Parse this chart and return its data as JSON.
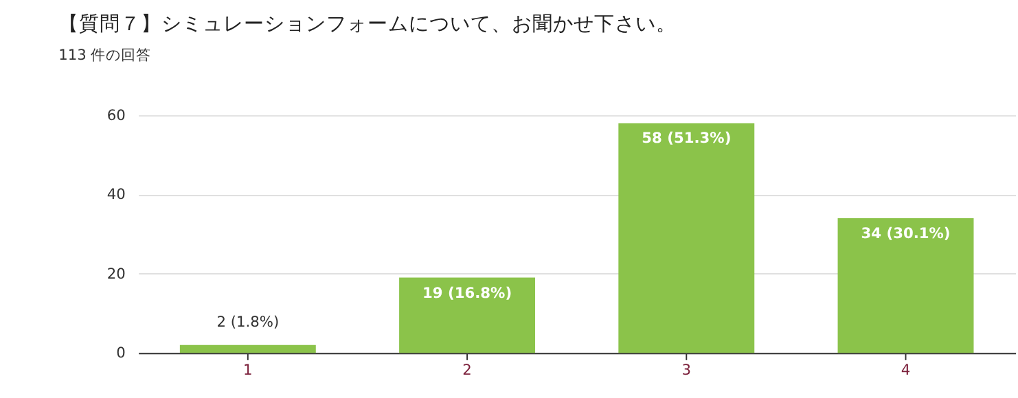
{
  "chart_data": {
    "type": "bar",
    "title": "【質問７】シミュレーションフォームについて、お聞かせ下さい。",
    "subtitle": "113 件の回答",
    "categories": [
      "1",
      "2",
      "3",
      "4"
    ],
    "values": [
      2,
      19,
      58,
      34
    ],
    "value_labels": [
      "2 (1.8%)",
      "19 (16.8%)",
      "58 (51.3%)",
      "34 (30.1%)"
    ],
    "color": "#8bc34a",
    "ylim": [
      0,
      60
    ],
    "yticks": [
      0,
      20,
      40,
      60
    ],
    "grid": "y"
  }
}
